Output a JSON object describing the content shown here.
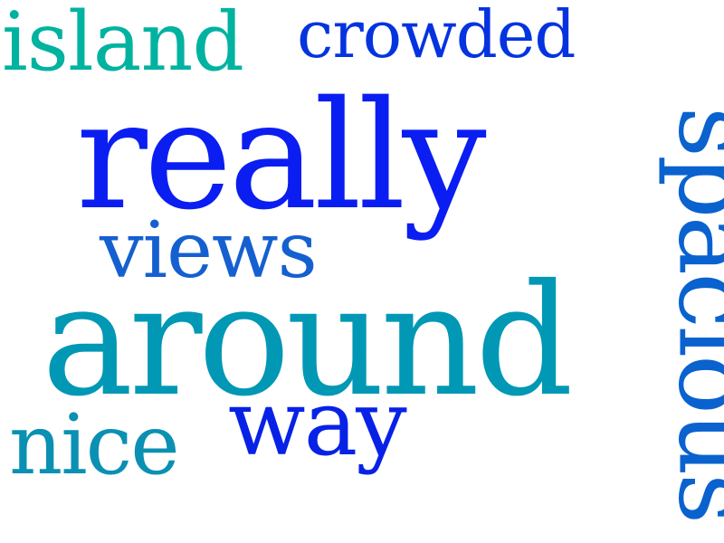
{
  "word_cloud": {
    "words": [
      {
        "text": "island",
        "color": "#00b3a0",
        "orientation": "horizontal"
      },
      {
        "text": "crowded",
        "color": "#0433e0",
        "orientation": "horizontal"
      },
      {
        "text": "really",
        "color": "#0a1ef2",
        "orientation": "horizontal"
      },
      {
        "text": "views",
        "color": "#1560d0",
        "orientation": "horizontal"
      },
      {
        "text": "around",
        "color": "#0098b4",
        "orientation": "horizontal"
      },
      {
        "text": "way",
        "color": "#0722e6",
        "orientation": "horizontal"
      },
      {
        "text": "nice",
        "color": "#0a90b2",
        "orientation": "horizontal"
      },
      {
        "text": "spacious",
        "color": "#0a62cf",
        "orientation": "vertical"
      }
    ]
  }
}
